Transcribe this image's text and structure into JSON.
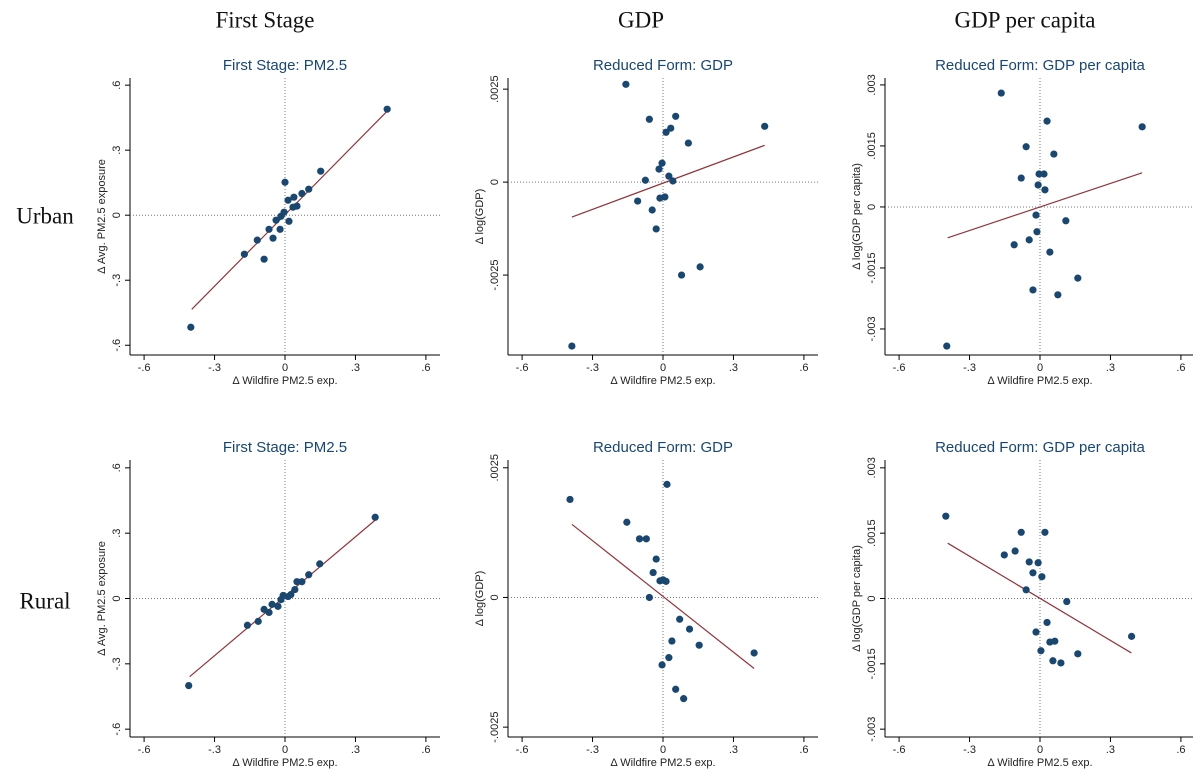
{
  "column_headers": [
    "First Stage",
    "GDP",
    "GDP per capita"
  ],
  "row_labels": [
    "Urban",
    "Rural"
  ],
  "chart_data": [
    {
      "type": "scatter",
      "title": "First Stage: PM2.5",
      "x_label": "Δ Wildfire PM2.5 exp.",
      "y_label": "Δ Avg. PM2.5 exposure",
      "color": "#1a476f",
      "x": [
        -0.401,
        -0.173,
        -0.118,
        -0.089,
        -0.068,
        -0.051,
        -0.038,
        -0.021,
        -0.017,
        -0.004,
        0,
        0.013,
        0.017,
        0.034,
        0.038,
        0.051,
        0.072,
        0.101,
        0.152,
        0.435
      ],
      "values": [
        -0.517,
        -0.18,
        -0.115,
        -0.203,
        -0.065,
        -0.106,
        -0.023,
        -0.065,
        -0.005,
        0.014,
        0.152,
        0.069,
        -0.028,
        0.037,
        0.083,
        0.042,
        0.1,
        0.12,
        0.203,
        0.489
      ],
      "fit": {
        "color": "#90353b",
        "x": [
          -0.397,
          0.435
        ],
        "values": [
          -0.434,
          0.48
        ]
      },
      "xlim": [
        -0.66,
        0.66
      ],
      "ylim": [
        -0.645,
        0.633
      ],
      "xticks": [
        {
          "value": -0.6,
          "label": "-.6"
        },
        {
          "value": -0.3,
          "label": "-.3"
        },
        0,
        {
          "value": 0.3,
          "label": ".3"
        },
        {
          "value": 0.6,
          "label": ".6"
        }
      ],
      "yticks": [
        {
          "value": -0.6,
          "label": "-.6"
        },
        {
          "value": -0.3,
          "label": "-.3"
        },
        0,
        {
          "value": 0.3,
          "label": ".3"
        },
        {
          "value": 0.6,
          "label": ".6"
        }
      ],
      "zero_lines": true
    },
    {
      "type": "scatter",
      "title": "Reduced Form: GDP",
      "x_label": "Δ Wildfire PM2.5 exp.",
      "y_label": "Δ log(GDP)",
      "color": "#1a476f",
      "x": [
        -0.158,
        0.433,
        0.054,
        -0.058,
        0.033,
        0.013,
        0.108,
        -0.004,
        -0.017,
        -0.075,
        0.025,
        0.042,
        0.008,
        -0.013,
        -0.108,
        -0.046,
        -0.029,
        0.079,
        0.158,
        -0.388
      ],
      "values": [
        0.00263,
        0.0015,
        0.00177,
        0.00169,
        0.00145,
        0.00134,
        0.00105,
        0.00051,
        0.00035,
        5e-05,
        0.00016,
        3e-05,
        -0.0004,
        -0.00043,
        -0.00051,
        -0.00075,
        -0.00126,
        -0.0025,
        -0.00228,
        -0.00441
      ],
      "fit": {
        "color": "#90353b",
        "x": [
          -0.388,
          0.433
        ],
        "values": [
          -0.00094,
          0.00099
        ]
      },
      "xlim": [
        -0.66,
        0.66
      ],
      "ylim": [
        -0.00465,
        0.0028
      ],
      "xticks": [
        {
          "value": -0.6,
          "label": "-.6"
        },
        {
          "value": -0.3,
          "label": "-.3"
        },
        0,
        {
          "value": 0.3,
          "label": ".3"
        },
        {
          "value": 0.6,
          "label": ".6"
        }
      ],
      "yticks": [
        {
          "value": -0.0025,
          "label": "-.0025"
        },
        0,
        {
          "value": 0.0025,
          "label": ".0025"
        }
      ],
      "zero_lines": true
    },
    {
      "type": "scatter",
      "title": "Reduced Form: GDP per capita",
      "x_label": "Δ Wildfire PM2.5 exp.",
      "y_label": "Δ log(GDP per capita)",
      "color": "#1a476f",
      "x": [
        -0.165,
        0.435,
        0.03,
        -0.059,
        0.059,
        -0.004,
        0.017,
        -0.08,
        -0.008,
        0.021,
        -0.017,
        0.11,
        -0.013,
        -0.046,
        -0.11,
        0.042,
        0.161,
        -0.03,
        0.076,
        -0.397
      ],
      "values": [
        0.0028,
        0.00197,
        0.00211,
        0.00148,
        0.0013,
        0.00081,
        0.00081,
        0.00071,
        0.00054,
        0.00042,
        -0.0002,
        -0.00034,
        -0.00061,
        -0.00081,
        -0.00093,
        -0.00111,
        -0.00175,
        -0.00204,
        -0.00216,
        -0.00342
      ],
      "fit": {
        "color": "#90353b",
        "x": [
          -0.393,
          0.435
        ],
        "values": [
          -0.00076,
          0.00084
        ]
      },
      "xlim": [
        -0.66,
        0.66
      ],
      "ylim": [
        -0.00364,
        0.00317
      ],
      "xticks": [
        {
          "value": -0.6,
          "label": "-.6"
        },
        {
          "value": -0.3,
          "label": "-.3"
        },
        0,
        {
          "value": 0.3,
          "label": ".3"
        },
        {
          "value": 0.6,
          "label": ".6"
        }
      ],
      "yticks": [
        {
          "value": -0.003,
          "label": "-.003"
        },
        {
          "value": -0.0015,
          "label": "-.0015"
        },
        0,
        {
          "value": 0.0015,
          "label": ".0015"
        },
        {
          "value": 0.003,
          "label": ".003"
        }
      ],
      "zero_lines": true
    },
    {
      "type": "scatter",
      "title": "First Stage: PM2.5",
      "x_label": "Δ Wildfire PM2.5 exp.",
      "y_label": "Δ Avg. PM2.5 exposure",
      "color": "#1a476f",
      "x": [
        0.384,
        -0.41,
        0.148,
        0.101,
        0.072,
        0.051,
        0.042,
        0.025,
        0.013,
        -0.008,
        -0.017,
        -0.03,
        -0.055,
        -0.068,
        -0.089,
        -0.114,
        -0.16
      ],
      "values": [
        0.373,
        -0.4,
        0.159,
        0.109,
        0.077,
        0.077,
        0.041,
        0.018,
        0.009,
        0.014,
        -0.005,
        -0.036,
        -0.027,
        -0.064,
        -0.05,
        -0.105,
        -0.123
      ],
      "fit": {
        "color": "#90353b",
        "x": [
          -0.406,
          0.393
        ],
        "values": [
          -0.359,
          0.368
        ]
      },
      "xlim": [
        -0.66,
        0.66
      ],
      "ylim": [
        -0.636,
        0.636
      ],
      "xticks": [
        {
          "value": -0.6,
          "label": "-.6"
        },
        {
          "value": -0.3,
          "label": "-.3"
        },
        0,
        {
          "value": 0.3,
          "label": ".3"
        },
        {
          "value": 0.6,
          "label": ".6"
        }
      ],
      "yticks": [
        {
          "value": -0.6,
          "label": "-.6"
        },
        {
          "value": -0.3,
          "label": "-.3"
        },
        0,
        {
          "value": 0.3,
          "label": ".3"
        },
        {
          "value": 0.6,
          "label": ".6"
        }
      ],
      "zero_lines": true
    },
    {
      "type": "scatter",
      "title": "Reduced Form: GDP",
      "x_label": "Δ Wildfire PM2.5 exp.",
      "y_label": "Δ log(GDP)",
      "color": "#1a476f",
      "x": [
        -0.396,
        0.017,
        -0.154,
        -0.1,
        -0.071,
        -0.029,
        -0.042,
        -0.013,
        0,
        0.013,
        -0.058,
        0.071,
        0.113,
        0.038,
        0.154,
        0.388,
        0.025,
        -0.004,
        0.054,
        0.088
      ],
      "values": [
        0.00189,
        0.00218,
        0.00145,
        0.00113,
        0.00113,
        0.00074,
        0.00048,
        0.00032,
        0.00034,
        0.00031,
        0,
        -0.00042,
        -0.00061,
        -0.00084,
        -0.00092,
        -0.00107,
        -0.00116,
        -0.0013,
        -0.00177,
        -0.00195
      ],
      "fit": {
        "color": "#90353b",
        "x": [
          -0.388,
          0.388
        ],
        "values": [
          0.00141,
          -0.00137
        ]
      },
      "xlim": [
        -0.66,
        0.66
      ],
      "ylim": [
        -0.00269,
        0.00265
      ],
      "xticks": [
        {
          "value": -0.6,
          "label": "-.6"
        },
        {
          "value": -0.3,
          "label": "-.3"
        },
        0,
        {
          "value": 0.3,
          "label": ".3"
        },
        {
          "value": 0.6,
          "label": ".6"
        }
      ],
      "yticks": [
        {
          "value": -0.0025,
          "label": "-.0025"
        },
        0,
        {
          "value": 0.0025,
          "label": ".0025"
        }
      ],
      "zero_lines": true
    },
    {
      "type": "scatter",
      "title": "Reduced Form: GDP per capita",
      "x_label": "Δ Wildfire PM2.5 exp.",
      "y_label": "Δ log(GDP per capita)",
      "color": "#1a476f",
      "x": [
        -0.401,
        -0.08,
        0.021,
        -0.106,
        -0.152,
        -0.046,
        -0.008,
        -0.03,
        0.008,
        -0.059,
        0.114,
        0.03,
        0.39,
        -0.017,
        0.063,
        0.042,
        0.161,
        0.004,
        0.055,
        0.089
      ],
      "values": [
        0.00189,
        0.00152,
        0.00152,
        0.00109,
        0.001,
        0.00084,
        0.00082,
        0.00059,
        0.0005,
        0.0002,
        -7e-05,
        -0.00055,
        -0.00087,
        -0.00077,
        -0.00098,
        -0.001,
        -0.00127,
        -0.0012,
        -0.00143,
        -0.00148
      ],
      "fit": {
        "color": "#90353b",
        "x": [
          -0.393,
          0.389
        ],
        "values": [
          0.00127,
          -0.00125
        ]
      },
      "xlim": [
        -0.66,
        0.66
      ],
      "ylim": [
        -0.00318,
        0.00318
      ],
      "xticks": [
        {
          "value": -0.6,
          "label": "-.6"
        },
        {
          "value": -0.3,
          "label": "-.3"
        },
        0,
        {
          "value": 0.3,
          "label": ".3"
        },
        {
          "value": 0.6,
          "label": ".6"
        }
      ],
      "yticks": [
        {
          "value": -0.003,
          "label": "-.003"
        },
        {
          "value": -0.0015,
          "label": "-.0015"
        },
        0,
        {
          "value": 0.0015,
          "label": ".0015"
        },
        {
          "value": 0.003,
          "label": ".003"
        }
      ],
      "zero_lines": true
    }
  ]
}
